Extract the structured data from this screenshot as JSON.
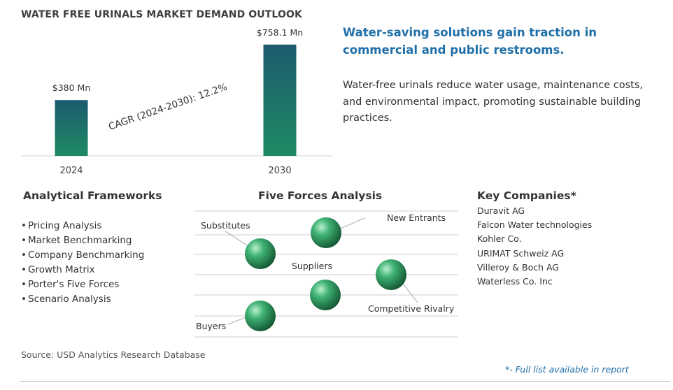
{
  "title": "WATER FREE URINALS MARKET DEMAND OUTLOOK",
  "chart_data": {
    "type": "bar",
    "categories": [
      "2024",
      "2030"
    ],
    "values": [
      380,
      758.1
    ],
    "data_labels": [
      "$380 Mn",
      "$758.1 Mn"
    ],
    "annotation": "CAGR (2024-2030):  12.2%",
    "ylim": [
      0,
      800
    ],
    "grid": false,
    "bar_color_top": "#1c5a6e",
    "bar_color_bottom": "#1e8a63"
  },
  "headline": "Water-saving solutions gain traction in commercial and public restrooms.",
  "description": "Water-free urinals reduce water usage, maintenance costs, and environmental impact, promoting sustainable building practices.",
  "frameworks": {
    "heading": "Analytical Frameworks",
    "items": [
      "Pricing Analysis",
      "Market Benchmarking",
      "Company Benchmarking",
      "Growth Matrix",
      "Porter's Five Forces",
      "Scenario Analysis"
    ]
  },
  "five_forces": {
    "heading": "Five Forces Analysis",
    "forces": [
      {
        "label": "New Entrants"
      },
      {
        "label": "Substitutes"
      },
      {
        "label": "Suppliers"
      },
      {
        "label": "Competitive Rivalry"
      },
      {
        "label": "Buyers"
      }
    ],
    "sphere_color": "#2e9a5e"
  },
  "companies": {
    "heading": "Key Companies*",
    "items": [
      "Duravit AG",
      "Falcon Water technologies",
      "Kohler Co.",
      "URIMAT Schweiz AG",
      "Villeroy & Boch AG",
      "Waterless Co. Inc"
    ]
  },
  "source": "Source: USD Analytics Research Database",
  "note": "*- Full list available in report"
}
